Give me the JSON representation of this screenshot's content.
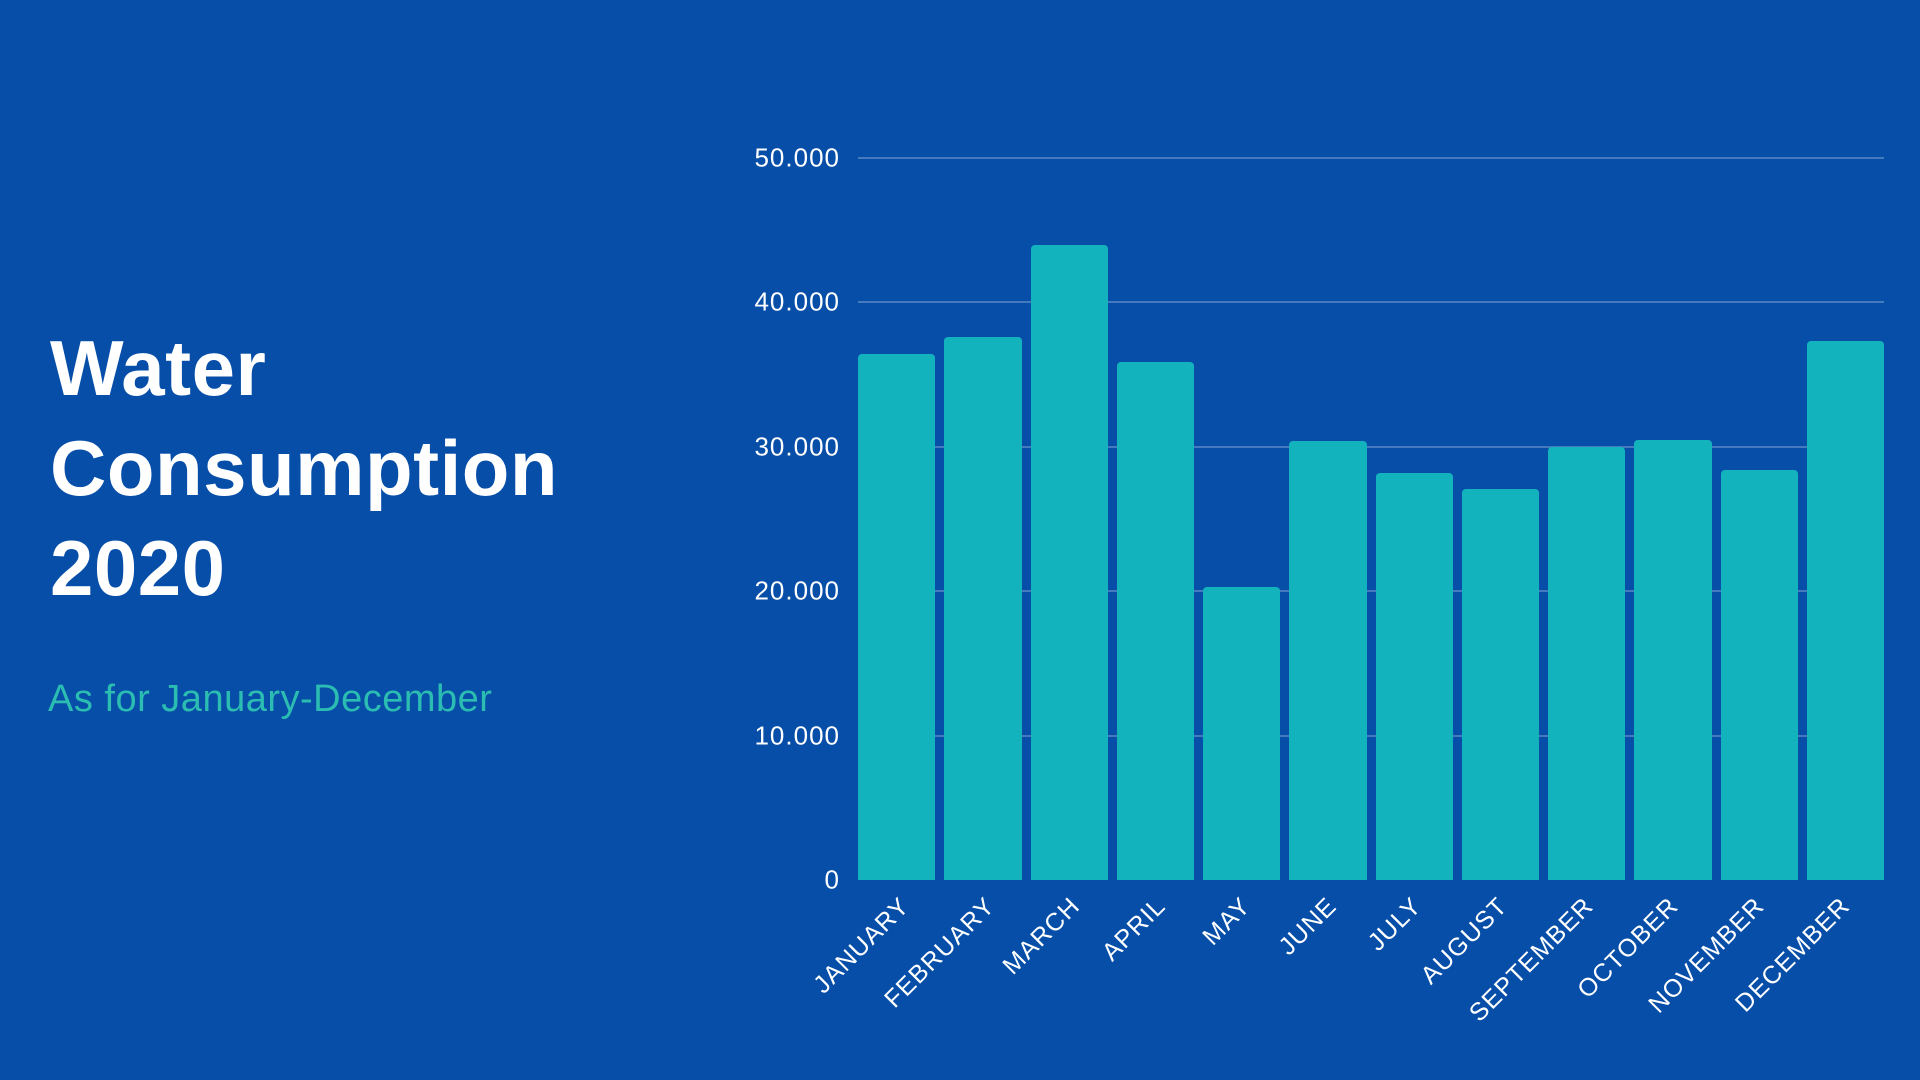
{
  "hero": {
    "title_lines": [
      "Water",
      "Consumption",
      "2020"
    ],
    "subtitle": "As for January-December"
  },
  "colors": {
    "background": "#074EA8",
    "title_text": "#FFFFFF",
    "subtitle_text": "#2BBCB2",
    "bar": "#13B3BE",
    "gridline": "rgba(255,255,255,0.25)",
    "axis_text": "#FFFFFF"
  },
  "chart_data": {
    "type": "bar",
    "title": "Water Consumption 2020",
    "subtitle": "As for January-December",
    "categories": [
      "JANUARY",
      "FEBRUARY",
      "MARCH",
      "APRIL",
      "MAY",
      "JUNE",
      "JULY",
      "AUGUST",
      "SEPTEMBER",
      "OCTOBER",
      "NOVEMBER",
      "DECEMBER"
    ],
    "values": [
      36400,
      37600,
      44000,
      35900,
      20300,
      30400,
      28200,
      27100,
      30000,
      30500,
      28400,
      37300
    ],
    "ylim": [
      0,
      50000
    ],
    "ytick_step": 10000,
    "ytick_labels": [
      "0",
      "10.000",
      "20.000",
      "30.000",
      "40.000",
      "50.000"
    ],
    "grid": "horizontal-only",
    "legend": false,
    "bar_corner_radius": "top-rounded",
    "x_label_rotation": -45
  }
}
